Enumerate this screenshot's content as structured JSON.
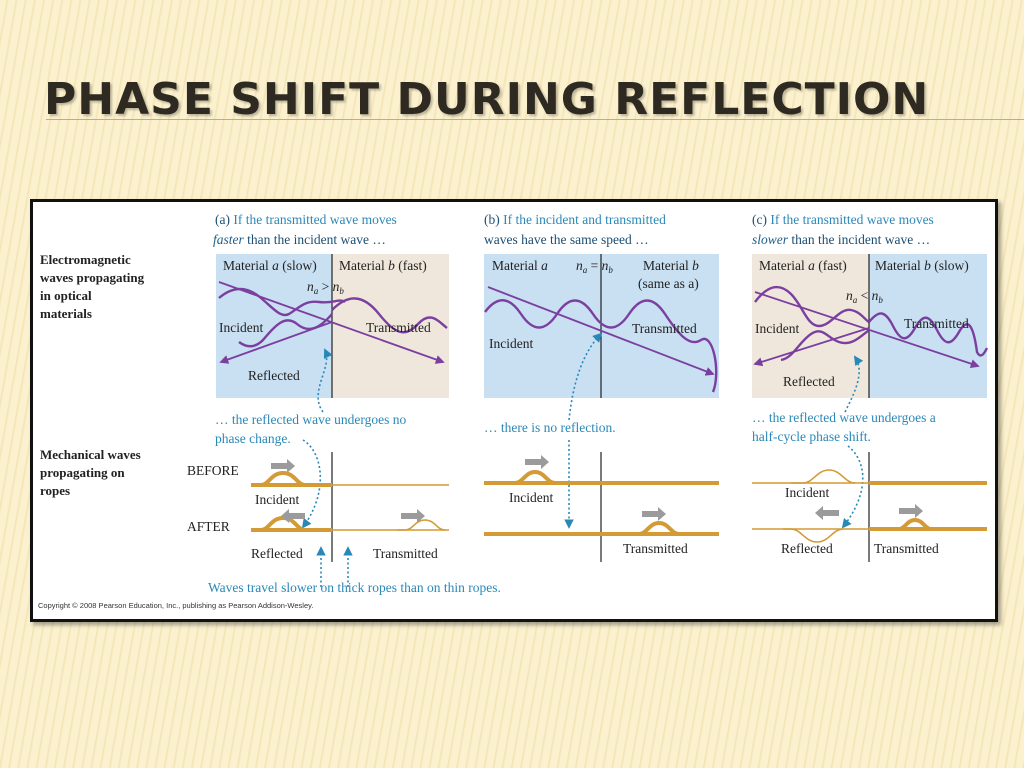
{
  "slide": {
    "title": "PHASE SHIFT DURING REFLECTION"
  },
  "figure": {
    "row_labels": {
      "em": [
        "Electromagnetic",
        "waves propagating",
        "in optical",
        "materials"
      ],
      "mech": [
        "Mechanical waves",
        "propagating on",
        "ropes"
      ]
    },
    "panel_a": {
      "letter": "(a)",
      "caption_1": " If the transmitted wave moves",
      "caption_2_it": "faster",
      "caption_2": " than the incident wave …",
      "material_left_pre": "Material ",
      "material_left_var": "a",
      "material_left_post": " (slow)",
      "material_right_pre": "Material ",
      "material_right_var": "b",
      "material_right_post": " (fast)",
      "index_relation": "n",
      "index_a": "a",
      "index_op": " > ",
      "index_b": "b",
      "incident": "Incident",
      "transmitted": "Transmitted",
      "reflected": "Reflected",
      "note_1": "… the reflected wave undergoes no",
      "note_2": "phase change.",
      "before": "BEFORE",
      "after": "AFTER",
      "rope_incident": "Incident",
      "rope_reflected": "Reflected",
      "rope_transmitted": "Transmitted"
    },
    "panel_b": {
      "letter": "(b)",
      "caption_1": " If the incident and transmitted",
      "caption_2": "waves have the same speed …",
      "material_left_pre": "Material ",
      "material_left_var": "a",
      "index_op": " = ",
      "material_right_pre": "Material ",
      "material_right_var": "b",
      "material_right_sub": "(same as a)",
      "incident": "Incident",
      "transmitted": "Transmitted",
      "note_1": "… there is no reflection.",
      "rope_incident": "Incident",
      "rope_transmitted": "Transmitted"
    },
    "panel_c": {
      "letter": "(c)",
      "caption_1": " If the transmitted wave moves",
      "caption_2_it": "slower",
      "caption_2": " than the incident wave …",
      "material_left_pre": "Material ",
      "material_left_var": "a",
      "material_left_post": " (fast)",
      "material_right_pre": "Material ",
      "material_right_var": "b",
      "material_right_post": " (slow)",
      "index_op": " < ",
      "incident": "Incident",
      "transmitted": "Transmitted",
      "reflected": "Reflected",
      "note_1": "… the reflected wave undergoes a",
      "note_2": "half-cycle phase shift.",
      "rope_incident": "Incident",
      "rope_reflected": "Reflected",
      "rope_transmitted": "Transmitted"
    },
    "bottom_note": "Waves travel slower on thick ropes than on thin ropes.",
    "copyright": "Copyright © 2008 Pearson Education, Inc., publishing as Pearson Addison-Wesley.",
    "colors": {
      "wave": "#7b3fa0",
      "rope": "#d39a36",
      "note": "#2a88b8",
      "slow_medium": "#c9dff2",
      "fast_medium": "#efe7dc"
    }
  }
}
